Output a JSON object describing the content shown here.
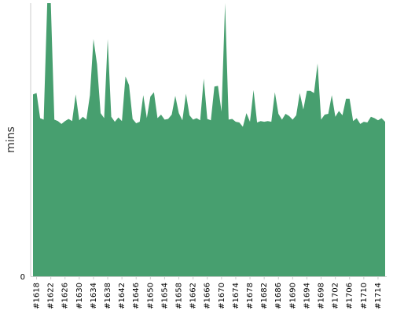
{
  "chart_data": {
    "type": "area",
    "title": "",
    "xlabel": "",
    "ylabel": "mins",
    "ylim_min_label": "0",
    "color": "#479f6f",
    "grid": false,
    "legend": "none",
    "x_tick_labels": [
      "#1618",
      "#1622",
      "#1626",
      "#1630",
      "#1634",
      "#1638",
      "#1642",
      "#1646",
      "#1650",
      "#1654",
      "#1658",
      "#1662",
      "#1666",
      "#1670",
      "#1674",
      "#1678",
      "#1682",
      "#1686",
      "#1690",
      "#1694",
      "#1698",
      "#1702",
      "#1706",
      "#1710",
      "#1714"
    ],
    "x": [
      1617,
      1618,
      1619,
      1620,
      1621,
      1622,
      1623,
      1624,
      1625,
      1626,
      1627,
      1628,
      1629,
      1630,
      1631,
      1632,
      1633,
      1634,
      1635,
      1636,
      1637,
      1638,
      1639,
      1640,
      1641,
      1642,
      1643,
      1644,
      1645,
      1646,
      1647,
      1648,
      1649,
      1650,
      1651,
      1652,
      1653,
      1654,
      1655,
      1656,
      1657,
      1658,
      1659,
      1660,
      1661,
      1662,
      1663,
      1664,
      1665,
      1666,
      1667,
      1668,
      1669,
      1670,
      1671,
      1672,
      1673,
      1674,
      1675,
      1676,
      1677,
      1678,
      1679,
      1680,
      1681,
      1682,
      1683,
      1684,
      1685,
      1686,
      1687,
      1688,
      1689,
      1690,
      1691,
      1692,
      1693,
      1694,
      1695,
      1696,
      1697,
      1698,
      1699,
      1700,
      1701,
      1702,
      1703,
      1704,
      1705,
      1706,
      1707,
      1708,
      1709,
      1710,
      1711,
      1712,
      1713,
      1714,
      1715,
      1716
    ],
    "y": [
      253,
      255,
      220,
      218,
      380,
      380,
      218,
      216,
      212,
      216,
      219,
      216,
      253,
      217,
      222,
      218,
      252,
      330,
      295,
      227,
      220,
      330,
      222,
      215,
      221,
      216,
      278,
      266,
      219,
      213,
      215,
      252,
      220,
      250,
      256,
      220,
      225,
      218,
      219,
      225,
      251,
      227,
      217,
      254,
      224,
      218,
      220,
      217,
      275,
      219,
      217,
      264,
      265,
      229,
      380,
      218,
      219,
      215,
      214,
      208,
      227,
      215,
      259,
      214,
      216,
      215,
      216,
      215,
      256,
      226,
      218,
      226,
      223,
      218,
      224,
      255,
      232,
      258,
      258,
      255,
      296,
      218,
      225,
      226,
      252,
      222,
      230,
      224,
      247,
      247,
      216,
      220,
      212,
      215,
      214,
      222,
      220,
      217,
      220,
      215
    ],
    "approx_max": 380
  }
}
